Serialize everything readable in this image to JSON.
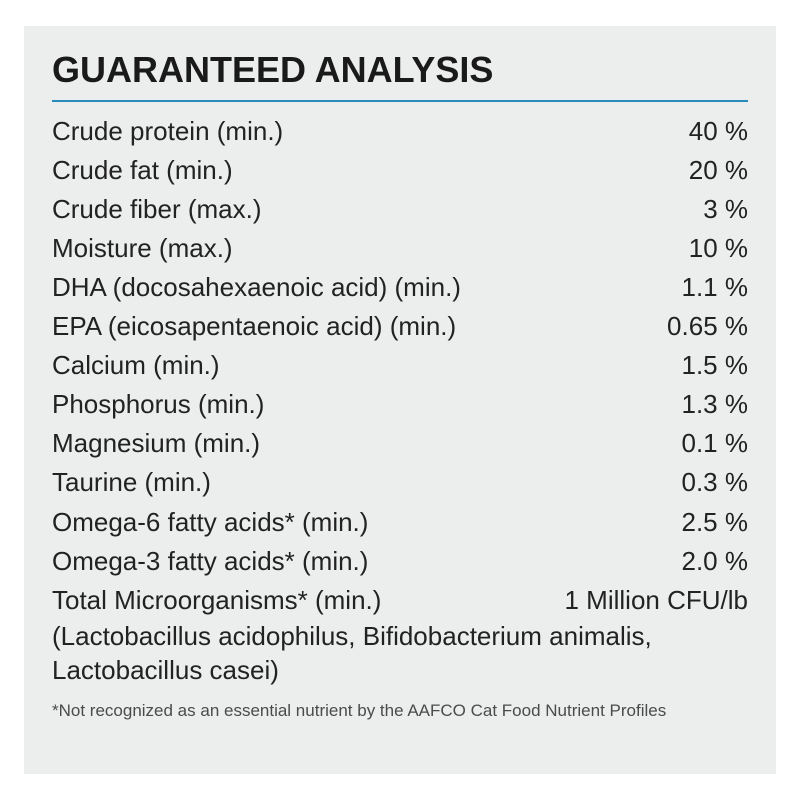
{
  "panel": {
    "title": "GUARANTEED ANALYSIS",
    "title_fontsize": 36,
    "title_color": "#1a1a1a",
    "rule_color": "#2a8bbd",
    "panel_bg": "#eceded",
    "body_fontsize": 26,
    "body_color": "#222222",
    "footnote_fontsize": 17,
    "footnote_color": "#4b4b4b",
    "rows": [
      {
        "label": "Crude protein (min.)",
        "value": "40 %"
      },
      {
        "label": "Crude fat (min.)",
        "value": "20 %"
      },
      {
        "label": "Crude fiber (max.)",
        "value": "3 %"
      },
      {
        "label": "Moisture (max.)",
        "value": "10 %"
      },
      {
        "label": "DHA (docosahexaenoic acid) (min.)",
        "value": "1.1 %"
      },
      {
        "label": "EPA (eicosapentaenoic acid) (min.)",
        "value": "0.65 %"
      },
      {
        "label": "Calcium (min.)",
        "value": "1.5 %"
      },
      {
        "label": "Phosphorus (min.)",
        "value": "1.3 %"
      },
      {
        "label": "Magnesium (min.)",
        "value": "0.1 %"
      },
      {
        "label": "Taurine (min.)",
        "value": "0.3 %"
      },
      {
        "label": "Omega-6 fatty acids* (min.)",
        "value": "2.5 %"
      },
      {
        "label": "Omega-3 fatty acids* (min.)",
        "value": "2.0 %"
      },
      {
        "label": "Total Microorganisms* (min.)",
        "value": "1 Million CFU/lb"
      }
    ],
    "parenthetical": "(Lactobacillus acidophilus, Bifidobacterium animalis, Lactobacillus casei)",
    "footnote": "*Not recognized as an essential nutrient by the AAFCO Cat Food Nutrient Profiles"
  }
}
